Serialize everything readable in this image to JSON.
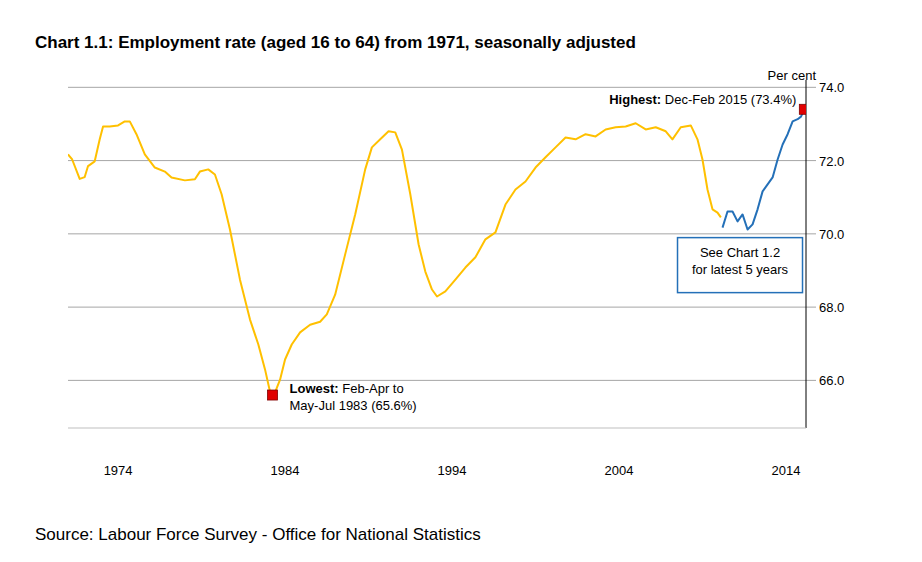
{
  "chart_data": {
    "type": "line",
    "title": "Chart 1.1: Employment rate (aged 16 to 64) from 1971, seasonally adjusted",
    "y_label": "Per cent",
    "source": "Source: Labour Force Survey - Office for National Statistics",
    "grid": true,
    "xlim": [
      1971,
      2015.2
    ],
    "xticks": [
      1974,
      1984,
      1994,
      2004,
      2014
    ],
    "ylim": [
      64.7,
      74.2
    ],
    "yticks": [
      {
        "value": 66,
        "label": "66.0"
      },
      {
        "value": 68,
        "label": "68.0"
      },
      {
        "value": 70,
        "label": "70.0"
      },
      {
        "value": 72,
        "label": "72.0"
      },
      {
        "value": 74,
        "label": "74.0"
      }
    ],
    "series": [
      {
        "color": "#ffc000",
        "x": [
          1971.0,
          1971.25,
          1971.7,
          1972.0,
          1972.2,
          1972.6,
          1972.9,
          1973.1,
          1973.5,
          1974.0,
          1974.4,
          1974.7,
          1975.1,
          1975.6,
          1976.2,
          1976.8,
          1977.2,
          1978.0,
          1978.6,
          1978.9,
          1979.4,
          1979.8,
          1980.2,
          1980.7,
          1981.3,
          1981.9,
          1982.4,
          1982.8,
          1983.1,
          1983.25,
          1983.4,
          1983.7,
          1984.0,
          1984.4,
          1984.9,
          1985.5,
          1986.1,
          1986.5,
          1987.0,
          1987.6,
          1988.2,
          1988.8,
          1989.2,
          1989.7,
          1990.2,
          1990.6,
          1991.0,
          1991.5,
          1992.0,
          1992.4,
          1992.8,
          1993.1,
          1993.6,
          1994.2,
          1994.8,
          1995.4,
          1996.0,
          1996.6,
          1997.2,
          1997.8,
          1998.4,
          1999.0,
          1999.6,
          2000.2,
          2000.8,
          2001.4,
          2002.0,
          2002.6,
          2003.2,
          2003.8,
          2004.4,
          2005.0,
          2005.6,
          2006.2,
          2006.8,
          2007.2,
          2007.7,
          2008.3,
          2008.7,
          2009.0,
          2009.3,
          2009.6,
          2009.9,
          2010.1
        ],
        "values": [
          72.17,
          72.03,
          71.5,
          71.55,
          71.85,
          71.98,
          72.58,
          72.93,
          72.93,
          72.96,
          73.07,
          73.07,
          72.72,
          72.17,
          71.81,
          71.7,
          71.54,
          71.46,
          71.49,
          71.7,
          71.76,
          71.62,
          71.08,
          70.12,
          68.75,
          67.66,
          66.98,
          66.3,
          65.69,
          65.6,
          65.67,
          66.02,
          66.57,
          66.98,
          67.31,
          67.52,
          67.6,
          67.8,
          68.34,
          69.44,
          70.53,
          71.76,
          72.36,
          72.58,
          72.8,
          72.77,
          72.3,
          71.08,
          69.71,
          68.97,
          68.48,
          68.29,
          68.43,
          68.75,
          69.08,
          69.36,
          69.85,
          70.04,
          70.8,
          71.21,
          71.43,
          71.81,
          72.09,
          72.36,
          72.63,
          72.58,
          72.72,
          72.66,
          72.85,
          72.91,
          72.93,
          73.02,
          72.85,
          72.91,
          72.8,
          72.58,
          72.91,
          72.96,
          72.58,
          72.03,
          71.21,
          70.67,
          70.58,
          70.45
        ]
      },
      {
        "color": "#2470b8",
        "x": [
          2010.2,
          2010.5,
          2010.8,
          2011.1,
          2011.4,
          2011.7,
          2012.0,
          2012.3,
          2012.6,
          2012.9,
          2013.2,
          2013.5,
          2013.8,
          2014.1,
          2014.4,
          2014.7,
          2014.9,
          2015.1
        ],
        "values": [
          70.17,
          70.61,
          70.61,
          70.34,
          70.53,
          70.12,
          70.26,
          70.67,
          71.16,
          71.35,
          71.54,
          72.03,
          72.44,
          72.72,
          73.07,
          73.13,
          73.2,
          73.4
        ]
      }
    ],
    "annotations": [
      {
        "label": "Highest:",
        "text": [
          "Dec-Feb 2015 (73.4%)"
        ],
        "x": 2015.1,
        "y": 73.4,
        "color": "#e00000"
      },
      {
        "label": "Lowest:",
        "text": [
          "Feb-Apr to",
          "May-Jul 1983 (65.6%)"
        ],
        "x": 1983.25,
        "y": 65.6,
        "color": "#e00000"
      }
    ],
    "callout": {
      "text": [
        "See Chart 1.2",
        "for latest 5 years"
      ],
      "color": "#2470b8"
    }
  }
}
